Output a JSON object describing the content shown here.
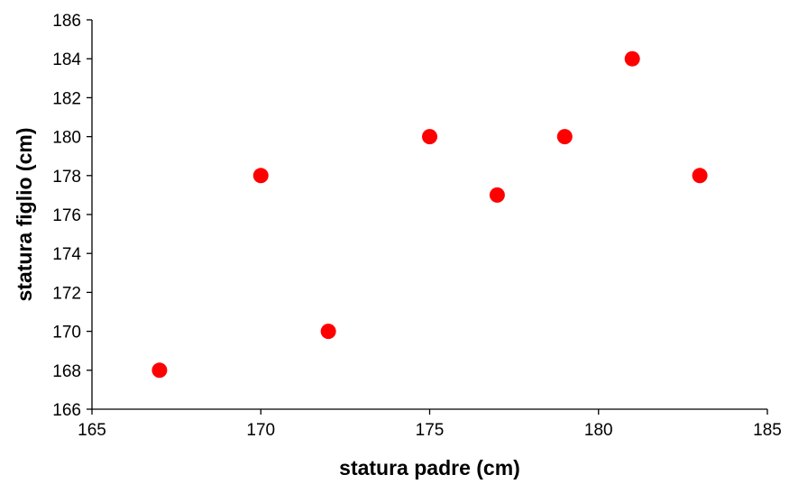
{
  "chart_data": {
    "type": "scatter",
    "title": "",
    "xlabel": "statura padre (cm)",
    "ylabel": "statura figlio (cm)",
    "xlim": [
      165,
      185
    ],
    "ylim": [
      166,
      186
    ],
    "xticks": [
      165,
      170,
      175,
      180,
      185
    ],
    "yticks": [
      166,
      168,
      170,
      172,
      174,
      176,
      178,
      180,
      182,
      184,
      186
    ],
    "grid": false,
    "legend": "none",
    "marker_color": "#ff0000",
    "series": [
      {
        "x": [
          167,
          170,
          172,
          175,
          177,
          179,
          181,
          183
        ],
        "y": [
          168,
          178,
          170,
          180,
          177,
          180,
          184,
          178
        ]
      }
    ]
  }
}
